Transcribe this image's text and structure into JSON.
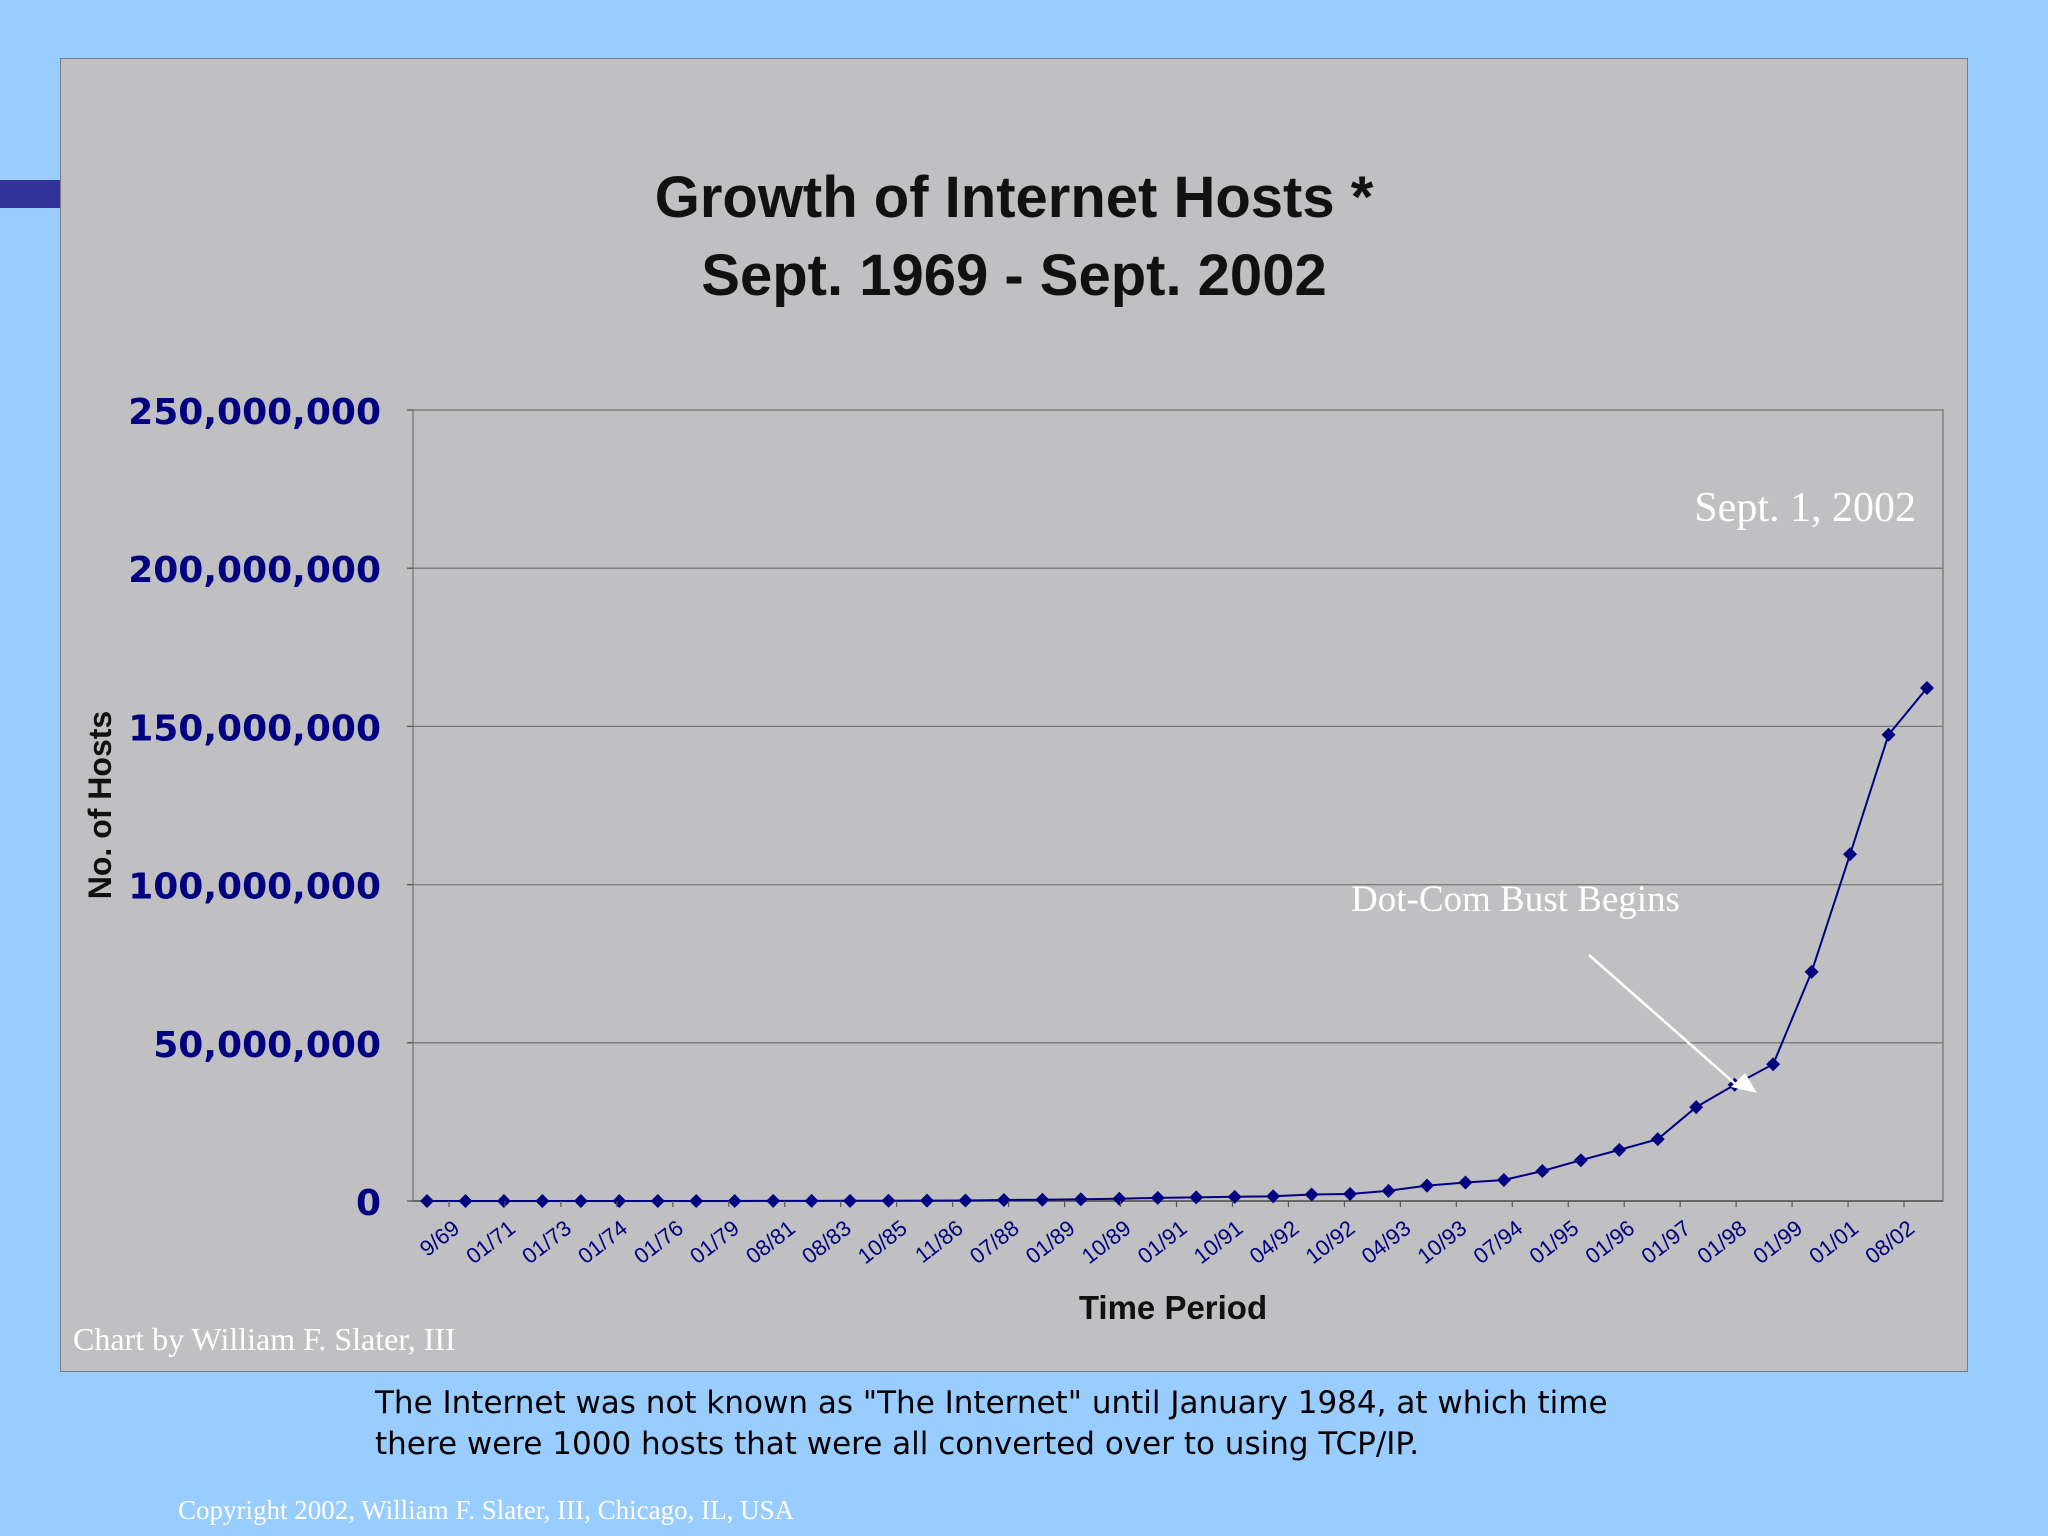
{
  "footnote": {
    "line1": "The Internet was not known as \"The Internet\" until January 1984, at which time",
    "line2": "there were 1000 hosts that were all converted over to using TCP/IP."
  },
  "copyright": "Copyright 2002, William F. Slater, III, Chicago, IL, USA",
  "colors": {
    "background": "#99CCFF",
    "accent_bar": "#333399",
    "chart_panel": "#C0BFC2",
    "series": "#000080",
    "annotation_text": "#FFFFFF"
  },
  "chart_data": {
    "type": "line",
    "title_lines": [
      "Growth of Internet Hosts *",
      "Sept. 1969 - Sept. 2002"
    ],
    "xlabel": "Time Period",
    "ylabel": "No. of Hosts",
    "ylim": [
      0,
      250000000
    ],
    "y_ticks": [
      0,
      50000000,
      100000000,
      150000000,
      200000000,
      250000000
    ],
    "y_tick_labels": [
      "0",
      "50,000,000",
      "100,000,000",
      "150,000,000",
      "200,000,000",
      "250,000,000"
    ],
    "x_tick_labels": [
      "9/69",
      "01/71",
      "01/73",
      "01/74",
      "01/76",
      "01/79",
      "08/81",
      "08/83",
      "10/85",
      "11/86",
      "07/88",
      "01/89",
      "10/89",
      "01/91",
      "10/91",
      "04/92",
      "10/92",
      "04/93",
      "10/93",
      "07/94",
      "01/95",
      "01/96",
      "01/97",
      "01/98",
      "01/99",
      "01/01",
      "08/02"
    ],
    "grid": true,
    "legend": "none",
    "credit": "Chart by William F. Slater, III",
    "series": [
      {
        "values": [
          4,
          23,
          35,
          62,
          213,
          562,
          1024,
          2308,
          5089,
          28174,
          33000,
          56000,
          80000,
          130000,
          159000,
          313000,
          376000,
          535000,
          727000,
          992000,
          1136000,
          1313000,
          1486000,
          2056000,
          2217000,
          3212000,
          4852000,
          5846000,
          6642000,
          9472000,
          12881000,
          16146000,
          19540000,
          29670000,
          36739000,
          43230000,
          72398000,
          109574000,
          147345000,
          162128493
        ]
      }
    ],
    "annotations": [
      {
        "text": "Sept. 1, 2002"
      },
      {
        "text": "Dot-Com Bust Begins"
      }
    ]
  }
}
